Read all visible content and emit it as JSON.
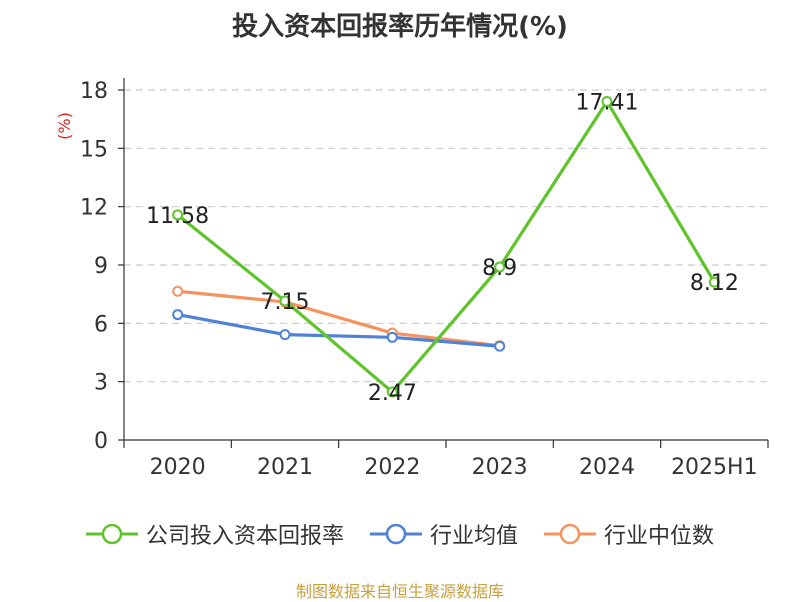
{
  "chart_data": {
    "type": "line",
    "title": "投入资本回报率历年情况(%)",
    "ylabel": "(%)",
    "categories": [
      "2020",
      "2021",
      "2022",
      "2023",
      "2024",
      "2025H1"
    ],
    "ylim": [
      0,
      18
    ],
    "yticks": [
      0,
      3,
      6,
      9,
      12,
      15,
      18
    ],
    "grid": true,
    "legend_position": "bottom",
    "series": [
      {
        "name": "公司投入资本回报率",
        "color": "#5ec42a",
        "values": [
          11.58,
          7.15,
          2.47,
          8.9,
          17.41,
          8.12
        ],
        "labels": [
          "11.58",
          "7.15",
          "2.47",
          "8.9",
          "17.41",
          "8.12"
        ]
      },
      {
        "name": "行业均值",
        "color": "#4f81d6",
        "values": [
          6.45,
          5.42,
          5.28,
          4.82,
          null,
          null
        ]
      },
      {
        "name": "行业中位数",
        "color": "#f5935e",
        "values": [
          7.65,
          7.1,
          5.5,
          4.85,
          null,
          null
        ]
      }
    ]
  },
  "source": "制图数据来自恒生聚源数据库"
}
